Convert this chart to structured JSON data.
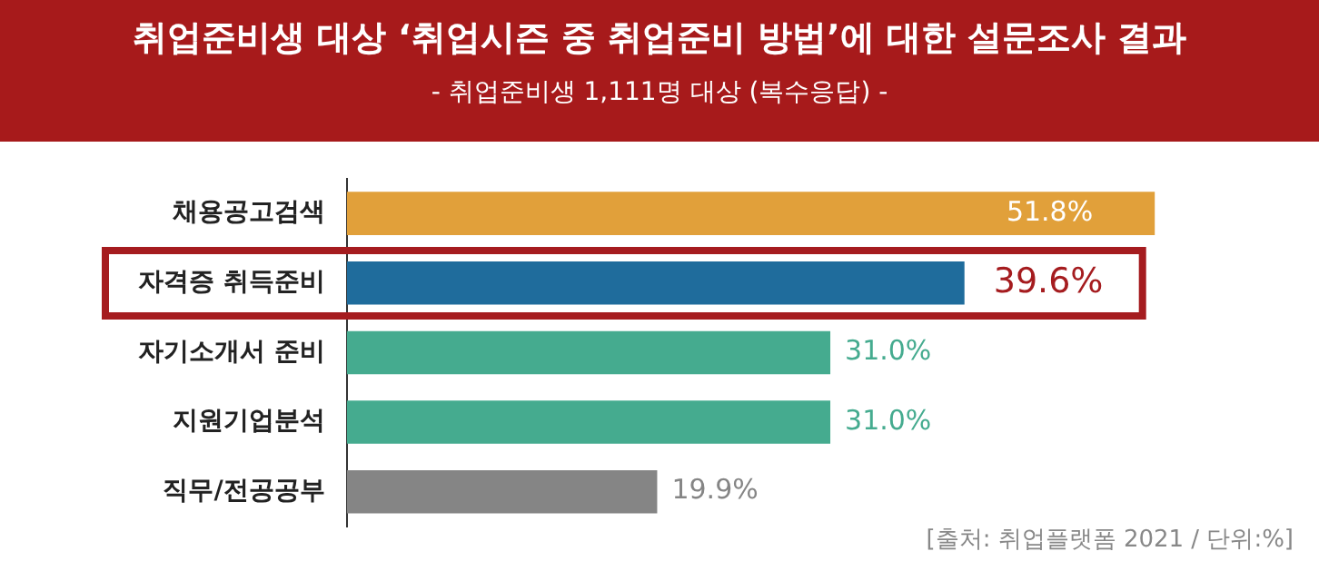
{
  "chart_data": {
    "type": "bar",
    "orientation": "horizontal",
    "title": "취업준비생 대상 ‘취업시즌 중 취업준비 방법’에 대한 설문조사 결과",
    "subtitle": "- 취업준비생 1,111명 대상 (복수응답) -",
    "categories": [
      "채용공고검색",
      "자격증 취득준비",
      "자기소개서 준비",
      "지원기업분석",
      "직무/전공공부"
    ],
    "values": [
      51.8,
      39.6,
      31.0,
      31.0,
      19.9
    ],
    "colors": [
      "#e1a03a",
      "#1f6c9c",
      "#45ab8f",
      "#45ab8f",
      "#858585"
    ],
    "value_labels": [
      "51.8%",
      "39.6%",
      "31.0%",
      "31.0%",
      "19.9%"
    ],
    "grid": false,
    "legend": false,
    "annotations": [
      "[출처: 취업플랫폼 2021 / 단위:%]"
    ]
  }
}
